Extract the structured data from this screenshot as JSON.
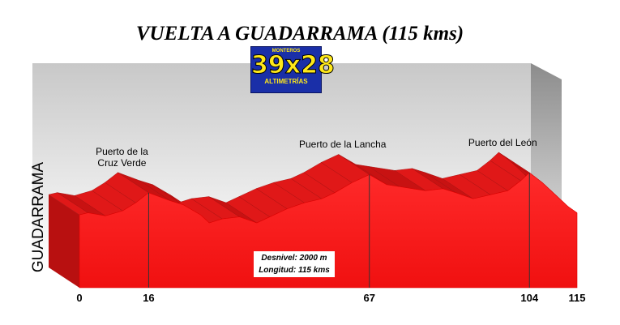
{
  "chart_data": {
    "type": "profile",
    "title": "VUELTA A GUADARRAMA (115 kms)",
    "y_label": "GUADARRAMA",
    "logo": {
      "top": "MONTEROS",
      "main": "39x28",
      "bottom": "ALTIMETRÍAS"
    },
    "color": "#ff1a1a",
    "x": [
      0,
      2,
      6,
      10,
      13,
      16,
      21,
      24,
      28,
      30,
      33,
      37,
      41,
      44,
      48,
      52,
      56,
      59,
      63,
      67,
      71,
      74,
      80,
      84,
      87,
      91,
      95,
      99,
      102,
      104,
      107,
      110,
      113,
      115
    ],
    "values": [
      1080,
      1100,
      1070,
      1120,
      1200,
      1300,
      1220,
      1180,
      1080,
      1000,
      1040,
      1060,
      1000,
      1060,
      1140,
      1200,
      1240,
      1300,
      1400,
      1480,
      1380,
      1360,
      1320,
      1340,
      1300,
      1240,
      1280,
      1320,
      1420,
      1500,
      1400,
      1280,
      1160,
      1100
    ],
    "xticks": [
      0,
      16,
      67,
      104,
      115
    ],
    "passes": [
      {
        "name": "Puerto de la Cruz Verde",
        "x": 16
      },
      {
        "name": "Puerto de la Lancha",
        "x": 67
      },
      {
        "name": "Puerto del León",
        "x": 104
      }
    ],
    "annotations": [
      "Desnivel: 2000 m",
      "Longitud:  115 kms"
    ]
  }
}
